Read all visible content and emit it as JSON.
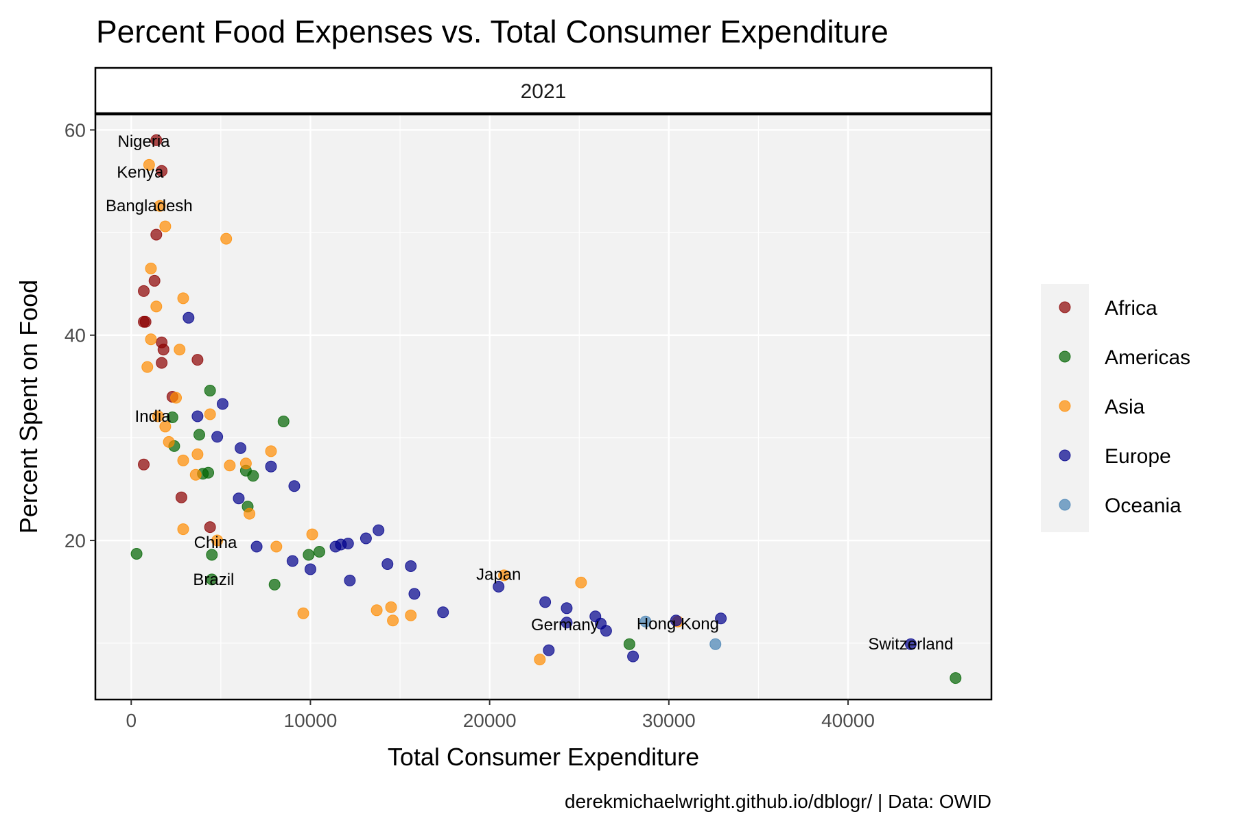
{
  "chart_data": {
    "type": "scatter",
    "title": "Percent Food Expenses vs. Total Consumer Expenditure",
    "facet": "2021",
    "xlabel": "Total Consumer Expenditure",
    "ylabel": "Percent Spent on Food",
    "caption": "derekmichaelwright.github.io/dblogr/ | Data: OWID",
    "xlim": [
      -2000,
      48000
    ],
    "ylim": [
      4.5,
      61.5
    ],
    "x_ticks": [
      0,
      10000,
      20000,
      30000,
      40000
    ],
    "y_ticks": [
      20,
      40,
      60
    ],
    "x_tick_labels": [
      "0",
      "10000",
      "20000",
      "30000",
      "40000"
    ],
    "y_tick_labels": [
      "20",
      "40",
      "60"
    ],
    "grid": true,
    "legend_position": "right",
    "series": [
      {
        "name": "Africa",
        "color": "#8B0000",
        "points": [
          [
            1400,
            59
          ],
          [
            1700,
            56
          ],
          [
            1400,
            49.8
          ],
          [
            1300,
            45.3
          ],
          [
            700,
            44.3
          ],
          [
            700,
            41.3
          ],
          [
            800,
            41.3
          ],
          [
            1700,
            39.3
          ],
          [
            1800,
            38.6
          ],
          [
            3700,
            37.6
          ],
          [
            1700,
            37.3
          ],
          [
            2300,
            34
          ],
          [
            700,
            27.4
          ],
          [
            2800,
            24.2
          ],
          [
            4400,
            21.3
          ]
        ]
      },
      {
        "name": "Americas",
        "color": "#006400",
        "points": [
          [
            300,
            18.7
          ],
          [
            2300,
            32
          ],
          [
            8500,
            31.6
          ],
          [
            4400,
            34.6
          ],
          [
            3800,
            30.3
          ],
          [
            2400,
            29.2
          ],
          [
            4000,
            26.5
          ],
          [
            4300,
            26.6
          ],
          [
            6400,
            26.8
          ],
          [
            6800,
            26.3
          ],
          [
            6500,
            23.3
          ],
          [
            4500,
            18.6
          ],
          [
            4500,
            16.2
          ],
          [
            8000,
            15.7
          ],
          [
            9900,
            18.6
          ],
          [
            10500,
            18.9
          ],
          [
            27800,
            9.9
          ],
          [
            46000,
            6.6
          ]
        ]
      },
      {
        "name": "Asia",
        "color": "#FF8C00",
        "points": [
          [
            1000,
            56.6
          ],
          [
            1600,
            52.6
          ],
          [
            1900,
            50.6
          ],
          [
            5300,
            49.4
          ],
          [
            1100,
            46.5
          ],
          [
            1400,
            42.8
          ],
          [
            2900,
            43.6
          ],
          [
            1100,
            39.6
          ],
          [
            2700,
            38.6
          ],
          [
            900,
            36.9
          ],
          [
            2500,
            33.9
          ],
          [
            4400,
            32.3
          ],
          [
            1500,
            32.1
          ],
          [
            1900,
            31.1
          ],
          [
            2100,
            29.6
          ],
          [
            3700,
            28.4
          ],
          [
            2900,
            27.8
          ],
          [
            5500,
            27.3
          ],
          [
            6400,
            27.5
          ],
          [
            7800,
            28.7
          ],
          [
            3600,
            26.4
          ],
          [
            6600,
            22.6
          ],
          [
            2900,
            21.1
          ],
          [
            4800,
            20
          ],
          [
            8100,
            19.4
          ],
          [
            10100,
            20.6
          ],
          [
            9600,
            12.9
          ],
          [
            13700,
            13.2
          ],
          [
            14500,
            13.5
          ],
          [
            14600,
            12.2
          ],
          [
            15600,
            12.7
          ],
          [
            20800,
            16.6
          ],
          [
            25100,
            15.9
          ],
          [
            22800,
            8.4
          ],
          [
            30500,
            12.1
          ]
        ]
      },
      {
        "name": "Europe",
        "color": "#00008B",
        "points": [
          [
            3200,
            41.7
          ],
          [
            5100,
            33.3
          ],
          [
            3700,
            32.1
          ],
          [
            4800,
            30.1
          ],
          [
            6100,
            29
          ],
          [
            7800,
            27.2
          ],
          [
            9100,
            25.3
          ],
          [
            6000,
            24.1
          ],
          [
            7000,
            19.4
          ],
          [
            9000,
            18
          ],
          [
            10000,
            17.2
          ],
          [
            11400,
            19.4
          ],
          [
            11700,
            19.6
          ],
          [
            12100,
            19.7
          ],
          [
            13100,
            20.2
          ],
          [
            13800,
            21
          ],
          [
            12200,
            16.1
          ],
          [
            14300,
            17.7
          ],
          [
            15600,
            17.5
          ],
          [
            15800,
            14.8
          ],
          [
            17400,
            13
          ],
          [
            20500,
            15.5
          ],
          [
            23100,
            14
          ],
          [
            24300,
            13.4
          ],
          [
            24300,
            12
          ],
          [
            25900,
            12.6
          ],
          [
            26200,
            11.9
          ],
          [
            26500,
            11.2
          ],
          [
            23300,
            9.3
          ],
          [
            28000,
            8.7
          ],
          [
            30400,
            12.2
          ],
          [
            32900,
            12.4
          ],
          [
            43500,
            9.9
          ]
        ]
      },
      {
        "name": "Oceania",
        "color": "#4682B4",
        "points": [
          [
            28700,
            12.1
          ],
          [
            32600,
            9.9
          ]
        ]
      }
    ],
    "annotations": [
      {
        "text": "Nigeria",
        "x": 700,
        "y": 58.9
      },
      {
        "text": "Kenya",
        "x": 500,
        "y": 55.9
      },
      {
        "text": "Bangladesh",
        "x": 1000,
        "y": 52.6
      },
      {
        "text": "India",
        "x": 1200,
        "y": 32.1
      },
      {
        "text": "China",
        "x": 4700,
        "y": 19.8
      },
      {
        "text": "Brazil",
        "x": 4600,
        "y": 16.2
      },
      {
        "text": "Japan",
        "x": 20500,
        "y": 16.7
      },
      {
        "text": "Germany",
        "x": 24200,
        "y": 11.8
      },
      {
        "text": "Hong Kong",
        "x": 30500,
        "y": 11.9
      },
      {
        "text": "Switzerland",
        "x": 43500,
        "y": 9.9
      }
    ]
  }
}
